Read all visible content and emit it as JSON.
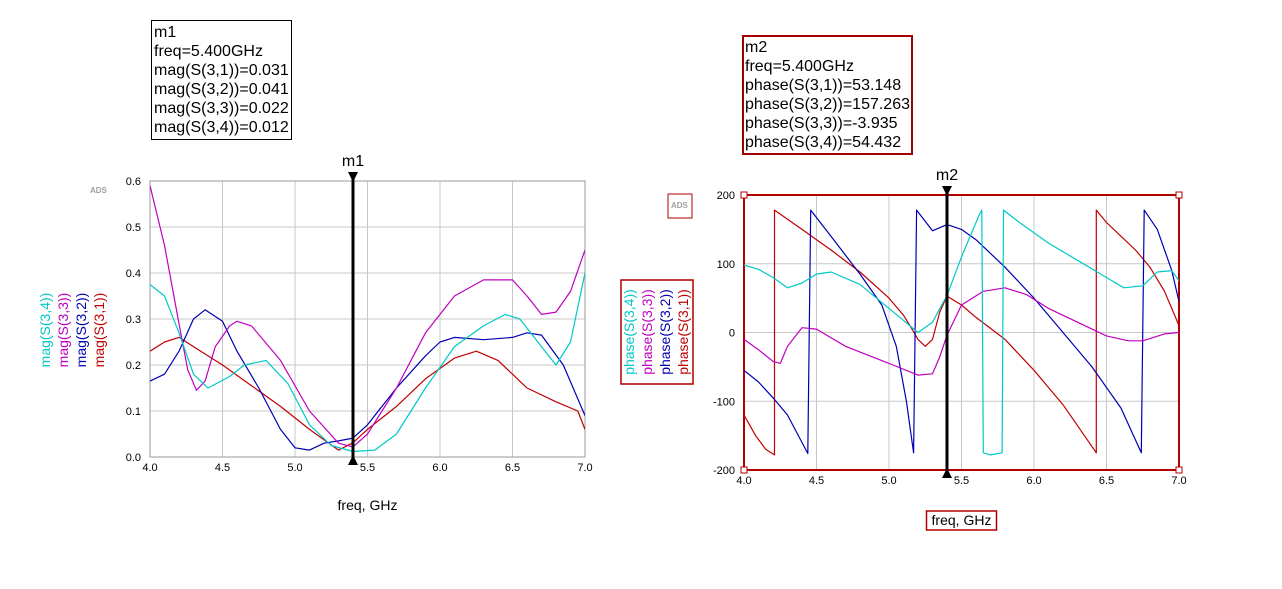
{
  "left_marker": {
    "name": "m1",
    "freq_line": "freq=5.400GHz",
    "lines": [
      "mag(S(3,1))=0.031",
      "mag(S(3,2))=0.041",
      "mag(S(3,3))=0.022",
      "mag(S(3,4))=0.012"
    ]
  },
  "right_marker": {
    "name": "m2",
    "freq_line": "freq=5.400GHz",
    "lines": [
      "phase(S(3,1))=53.148",
      "phase(S(3,2))=157.263",
      "phase(S(3,3))=-3.935",
      "phase(S(3,4))=54.432"
    ]
  },
  "colors": {
    "s31": "#c00000",
    "s32": "#0000b0",
    "s33": "#c000c0",
    "s34": "#00c8c8",
    "frame": "#b00000",
    "marker": "#000000"
  },
  "chart_data": [
    {
      "type": "line",
      "name": "magnitude",
      "watermark": "ADS",
      "xlabel": "freq, GHz",
      "xlim": [
        4.0,
        7.0
      ],
      "ylim": [
        0.0,
        0.6
      ],
      "xticks": [
        "4.0",
        "4.5",
        "5.0",
        "5.5",
        "6.0",
        "6.5",
        "7.0"
      ],
      "yticks": [
        "0.0",
        "0.1",
        "0.2",
        "0.3",
        "0.4",
        "0.5",
        "0.6"
      ],
      "grid": true,
      "marker": {
        "label": "m1",
        "x": 5.4
      },
      "legend": [
        "mag(S(3,4))",
        "mag(S(3,3))",
        "mag(S(3,2))",
        "mag(S(3,1))"
      ],
      "series": [
        {
          "name": "mag(S(3,1))",
          "color": "#c00000",
          "x": [
            4.0,
            4.1,
            4.2,
            4.3,
            4.5,
            4.7,
            4.9,
            5.1,
            5.3,
            5.4,
            5.5,
            5.7,
            5.9,
            6.1,
            6.25,
            6.4,
            6.6,
            6.8,
            6.95,
            7.0
          ],
          "y": [
            0.23,
            0.25,
            0.26,
            0.24,
            0.2,
            0.155,
            0.11,
            0.06,
            0.015,
            0.031,
            0.06,
            0.11,
            0.17,
            0.215,
            0.23,
            0.21,
            0.15,
            0.12,
            0.1,
            0.06
          ]
        },
        {
          "name": "mag(S(3,2))",
          "color": "#0000b0",
          "x": [
            4.0,
            4.1,
            4.2,
            4.3,
            4.38,
            4.5,
            4.6,
            4.75,
            4.9,
            5.0,
            5.1,
            5.2,
            5.3,
            5.4,
            5.5,
            5.7,
            5.9,
            6.0,
            6.1,
            6.3,
            6.5,
            6.6,
            6.7,
            6.85,
            7.0
          ],
          "y": [
            0.165,
            0.18,
            0.23,
            0.3,
            0.32,
            0.295,
            0.23,
            0.15,
            0.06,
            0.02,
            0.015,
            0.03,
            0.035,
            0.041,
            0.07,
            0.15,
            0.22,
            0.25,
            0.26,
            0.255,
            0.26,
            0.27,
            0.265,
            0.2,
            0.09
          ]
        },
        {
          "name": "mag(S(3,3))",
          "color": "#c000c0",
          "x": [
            4.0,
            4.1,
            4.2,
            4.26,
            4.32,
            4.38,
            4.45,
            4.55,
            4.6,
            4.7,
            4.9,
            5.1,
            5.3,
            5.4,
            5.5,
            5.7,
            5.9,
            6.1,
            6.3,
            6.5,
            6.6,
            6.7,
            6.8,
            6.9,
            7.0
          ],
          "y": [
            0.59,
            0.46,
            0.29,
            0.19,
            0.145,
            0.165,
            0.24,
            0.285,
            0.295,
            0.285,
            0.21,
            0.1,
            0.03,
            0.022,
            0.05,
            0.15,
            0.27,
            0.35,
            0.385,
            0.385,
            0.35,
            0.31,
            0.315,
            0.36,
            0.45
          ]
        },
        {
          "name": "mag(S(3,4))",
          "color": "#00c8c8",
          "x": [
            4.0,
            4.1,
            4.2,
            4.3,
            4.4,
            4.55,
            4.65,
            4.8,
            4.95,
            5.1,
            5.25,
            5.4,
            5.55,
            5.7,
            5.9,
            6.1,
            6.3,
            6.45,
            6.55,
            6.7,
            6.8,
            6.9,
            7.0
          ],
          "y": [
            0.375,
            0.35,
            0.27,
            0.18,
            0.15,
            0.175,
            0.2,
            0.21,
            0.16,
            0.07,
            0.025,
            0.012,
            0.015,
            0.05,
            0.15,
            0.24,
            0.285,
            0.31,
            0.3,
            0.24,
            0.2,
            0.25,
            0.4
          ]
        }
      ]
    },
    {
      "type": "line",
      "name": "phase",
      "watermark": "ADS",
      "xlabel": "freq, GHz",
      "xlim": [
        4.0,
        7.0
      ],
      "ylim": [
        -200,
        200
      ],
      "xticks": [
        "4.0",
        "4.5",
        "5.0",
        "5.5",
        "6.0",
        "6.5",
        "7.0"
      ],
      "yticks": [
        "-200",
        "-100",
        "0",
        "100",
        "200"
      ],
      "grid": true,
      "marker": {
        "label": "m2",
        "x": 5.4
      },
      "legend": [
        "phase(S(3,4))",
        "phase(S(3,3))",
        "phase(S(3,2))",
        "phase(S(3,1))"
      ],
      "series": [
        {
          "name": "phase(S(3,1))",
          "color": "#c00000",
          "x": [
            4.0,
            4.08,
            4.15,
            4.21,
            4.21,
            4.4,
            4.6,
            4.8,
            5.0,
            5.1,
            5.15,
            5.2,
            5.25,
            5.3,
            5.35,
            5.4,
            5.5,
            5.6,
            5.8,
            6.0,
            6.2,
            6.43,
            6.43,
            6.5,
            6.6,
            6.7,
            6.8,
            6.9,
            7.0
          ],
          "y": [
            -120,
            -150,
            -170,
            -178,
            178,
            150,
            120,
            88,
            50,
            25,
            8,
            -10,
            -20,
            -10,
            30,
            53,
            40,
            22,
            -10,
            -55,
            -105,
            -175,
            178,
            160,
            140,
            120,
            95,
            60,
            10
          ]
        },
        {
          "name": "phase(S(3,2))",
          "color": "#0000b0",
          "x": [
            4.0,
            4.1,
            4.2,
            4.3,
            4.44,
            4.46,
            4.6,
            4.8,
            4.95,
            5.05,
            5.12,
            5.17,
            5.19,
            5.3,
            5.4,
            5.5,
            5.6,
            5.8,
            6.0,
            6.2,
            6.4,
            6.6,
            6.74,
            6.76,
            6.85,
            6.95,
            7.0
          ],
          "y": [
            -55,
            -72,
            -95,
            -120,
            -176,
            178,
            140,
            85,
            40,
            -20,
            -100,
            -175,
            178,
            148,
            157,
            150,
            135,
            95,
            50,
            0,
            -50,
            -110,
            -175,
            178,
            150,
            90,
            45
          ]
        },
        {
          "name": "phase(S(3,3))",
          "color": "#c000c0",
          "x": [
            4.0,
            4.1,
            4.2,
            4.25,
            4.3,
            4.4,
            4.5,
            4.7,
            5.0,
            5.2,
            5.3,
            5.35,
            5.4,
            5.5,
            5.65,
            5.8,
            5.95,
            6.1,
            6.3,
            6.5,
            6.65,
            6.75,
            6.9,
            7.0
          ],
          "y": [
            -10,
            -25,
            -42,
            -45,
            -20,
            7,
            5,
            -20,
            -45,
            -62,
            -60,
            -35,
            -4,
            40,
            60,
            65,
            55,
            35,
            15,
            -5,
            -12,
            -12,
            -2,
            0
          ]
        },
        {
          "name": "phase(S(3,4))",
          "color": "#00c8c8",
          "x": [
            4.0,
            4.1,
            4.2,
            4.3,
            4.4,
            4.5,
            4.6,
            4.8,
            5.0,
            5.2,
            5.3,
            5.4,
            5.5,
            5.58,
            5.62,
            5.64,
            5.65,
            5.7,
            5.78,
            5.79,
            5.9,
            6.1,
            6.3,
            6.5,
            6.62,
            6.75,
            6.85,
            6.95,
            7.0
          ],
          "y": [
            98,
            92,
            80,
            65,
            72,
            85,
            88,
            70,
            35,
            0,
            15,
            54,
            110,
            150,
            170,
            178,
            -175,
            -178,
            -175,
            178,
            160,
            130,
            105,
            80,
            65,
            68,
            88,
            90,
            75
          ]
        }
      ]
    }
  ]
}
